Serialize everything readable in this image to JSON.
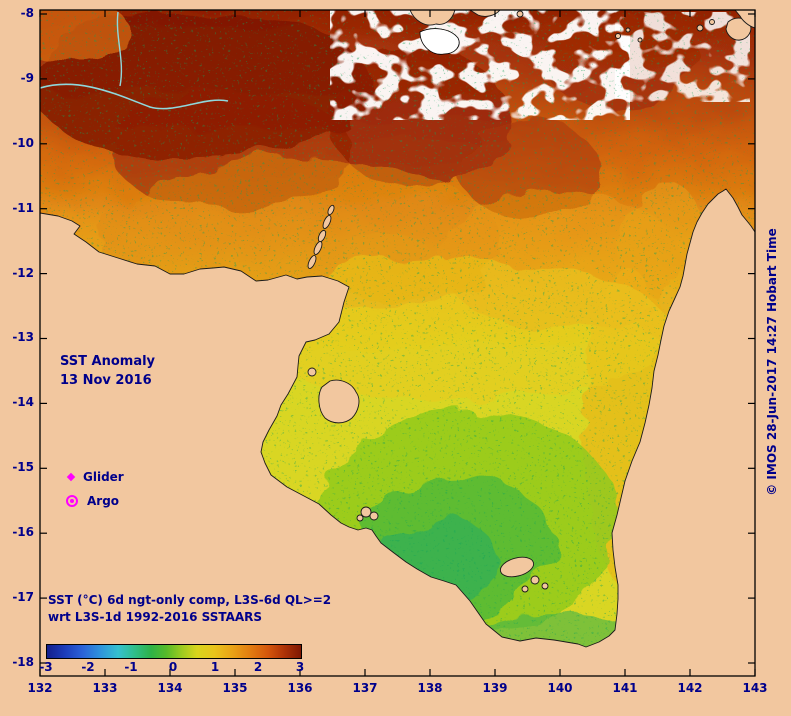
{
  "figure": {
    "title_line1": "SST Anomaly",
    "title_line2": "13 Nov 2016",
    "caption_line1": "SST (°C) 6d ngt-only comp, L3S-6d QL>=2",
    "caption_line2": "wrt L3S-1d 1992-2016 SSTAARS",
    "credit_vertical": "© IMOS 28-Jun-2017 14:27 Hobart Time"
  },
  "legend": {
    "items": [
      {
        "label": "Glider",
        "marker": "magenta-diamond"
      },
      {
        "label": "Argo",
        "marker": "magenta-circle"
      }
    ]
  },
  "axes": {
    "x_ticks": [
      "132",
      "133",
      "134",
      "135",
      "136",
      "137",
      "138",
      "139",
      "140",
      "141",
      "142",
      "143"
    ],
    "y_ticks": [
      "-8",
      "-9",
      "-10",
      "-11",
      "-12",
      "-13",
      "-14",
      "-15",
      "-16",
      "-17",
      "-18"
    ]
  },
  "colorbar": {
    "ticks": [
      "-3",
      "-2",
      "-1",
      "0",
      "1",
      "2",
      "3"
    ],
    "gradient": [
      "#141f8c",
      "#1c3cba",
      "#2b62d9",
      "#2f93dc",
      "#35c0cf",
      "#2fbf8f",
      "#2eb247",
      "#56bb2a",
      "#9ccb20",
      "#d8d51d",
      "#e9c41b",
      "#e9a216",
      "#e27c10",
      "#d4560c",
      "#b03407",
      "#7f1703"
    ]
  },
  "colors": {
    "land": "#f2c79f",
    "label_text": "#00008b",
    "marker": "#ff00ff",
    "contour_line": "#8fd8dc",
    "missing_data": "#ffffff"
  }
}
